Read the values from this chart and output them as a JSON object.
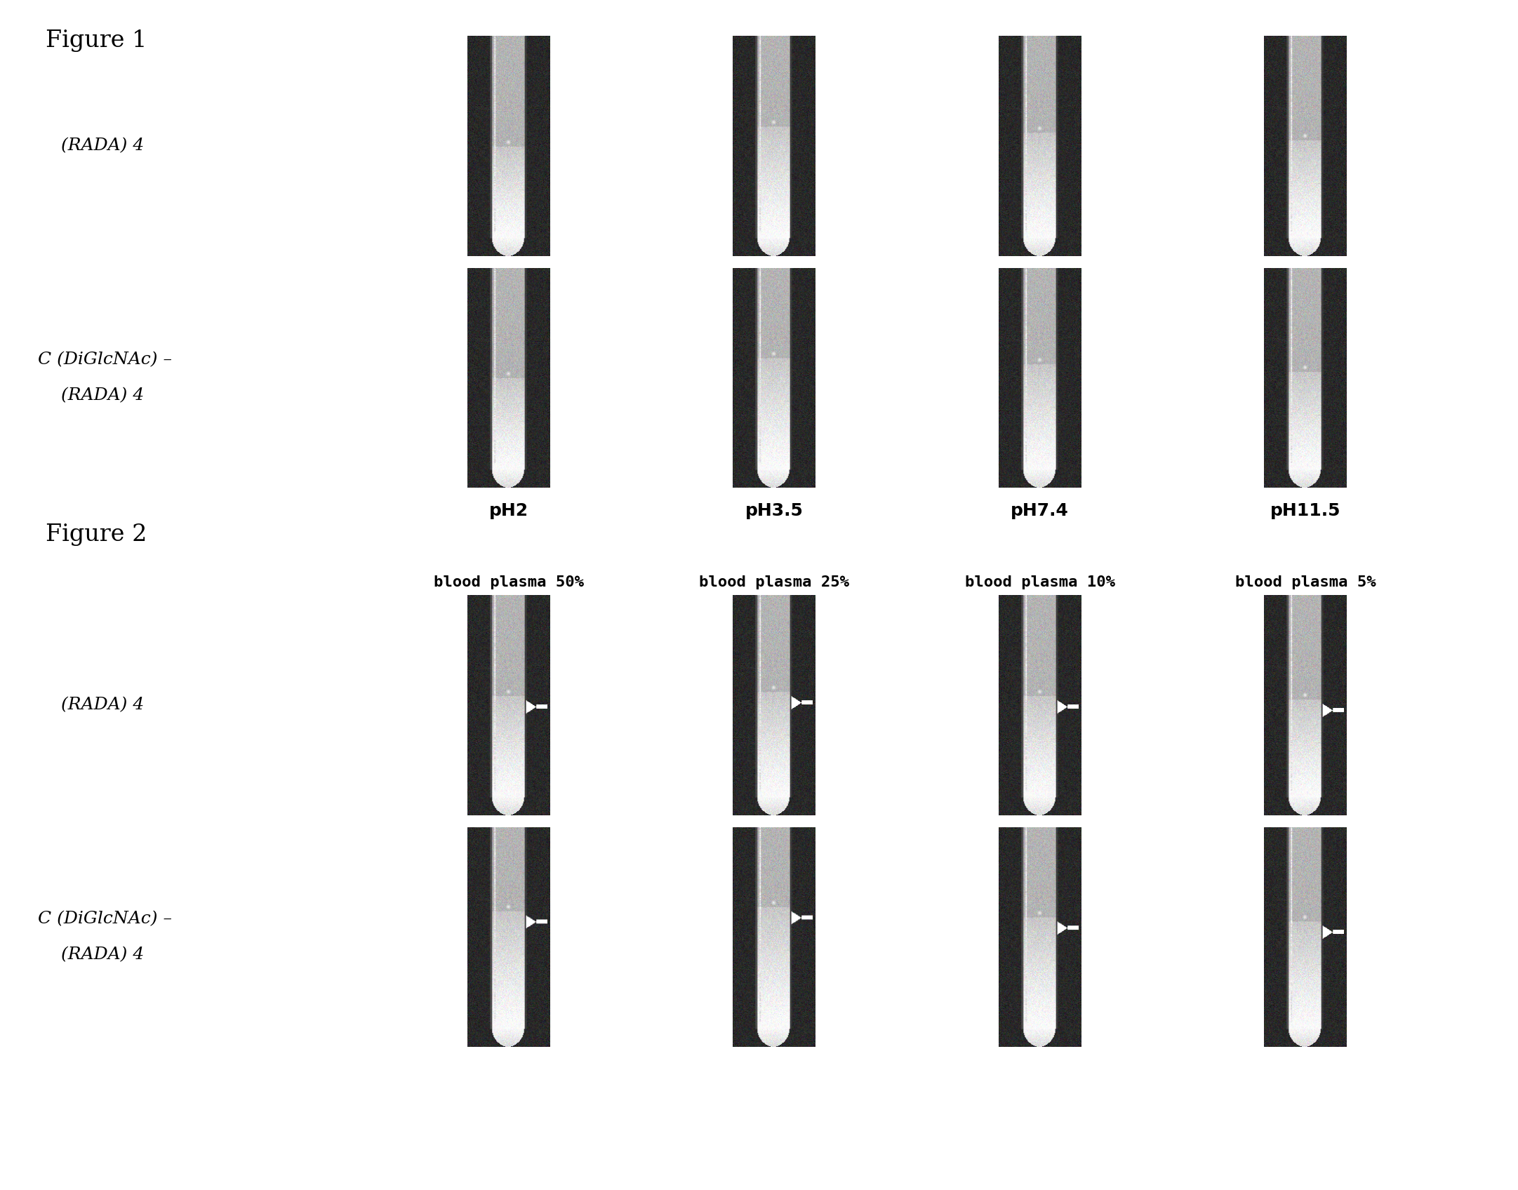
{
  "fig1_label": "Figure 1",
  "fig2_label": "Figure 2",
  "fig1_row1_label": "(RADA) 4",
  "fig1_row2_label1": "C (DiGlcNAc) –",
  "fig1_row2_label2": "(RADA) 4",
  "fig2_row1_label": "(RADA) 4",
  "fig2_row2_label1": "C (DiGlcNAc) –",
  "fig2_row2_label2": "(RADA) 4",
  "fig1_col_labels": [
    "pH2",
    "pH3.5",
    "pH7.4",
    "pH11.5"
  ],
  "fig2_col_labels": [
    "blood plasma 50%",
    "blood plasma 25%",
    "blood plasma 10%",
    "blood plasma 5%"
  ],
  "bg_color": "#ffffff",
  "text_color": "#000000",
  "figure_label_fontsize": 24,
  "row_label_fontsize": 18,
  "col_label_fontsize": 18,
  "col_label_bold_fontsize": 17,
  "fig1_tube_gel_levels_row1": [
    0.55,
    0.45,
    0.48,
    0.52
  ],
  "fig1_tube_gel_levels_row2": [
    0.55,
    0.45,
    0.48,
    0.52
  ],
  "fig2_tube_gel_levels_row1": [
    0.5,
    0.48,
    0.5,
    0.52
  ],
  "fig2_tube_gel_levels_row2": [
    0.42,
    0.4,
    0.45,
    0.47
  ]
}
